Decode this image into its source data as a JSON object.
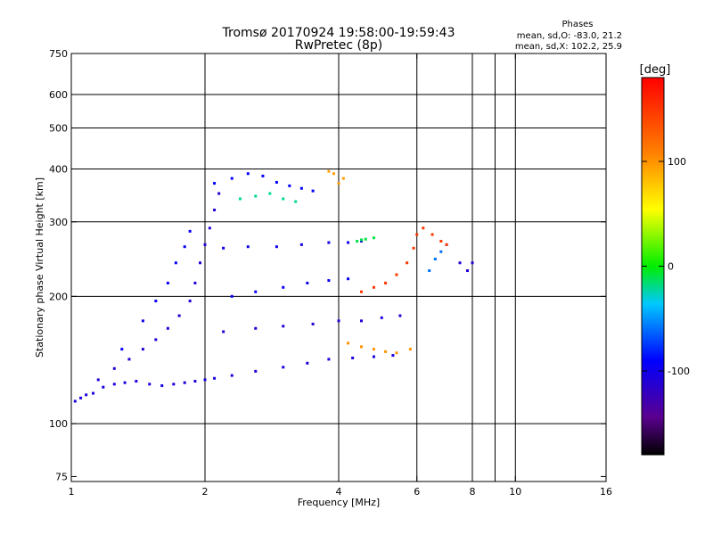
{
  "title": {
    "line1": "Tromsø 20170924 19:58:00-19:59:43",
    "line2": "RwPretec (8p)"
  },
  "phase_stats": {
    "heading": "Phases",
    "o_mode": "mean, sd,O: -83.0, 21.2",
    "x_mode": "mean, sd,X: 102.2, 25.9"
  },
  "colorbar": {
    "unit_label": "[deg]",
    "ticks": [
      "100",
      "0",
      "-100"
    ],
    "tick_values": [
      100,
      0,
      -100
    ],
    "range": [
      -180,
      180
    ],
    "colormap": "rainbow"
  },
  "chart_data": {
    "type": "scatter",
    "xlabel": "Frequency [MHz]",
    "ylabel": "Stationary phase Virtual Height [km]",
    "x_scale": "log",
    "y_scale": "log",
    "xlim": [
      1,
      16
    ],
    "ylim": [
      73,
      750
    ],
    "x_ticks": [
      {
        "value": 1,
        "label": "1"
      },
      {
        "value": 2,
        "label": "2"
      },
      {
        "value": 4,
        "label": "4"
      },
      {
        "value": 6,
        "label": "6"
      },
      {
        "value": 8,
        "label": "8"
      },
      {
        "value": 10,
        "label": "10"
      },
      {
        "value": 16,
        "label": "16"
      }
    ],
    "x_gridlines": [
      2,
      4,
      6,
      8,
      9,
      10
    ],
    "y_ticks": [
      {
        "value": 75,
        "label": "75"
      },
      {
        "value": 100,
        "label": "100"
      },
      {
        "value": 200,
        "label": "200"
      },
      {
        "value": 300,
        "label": "300"
      },
      {
        "value": 400,
        "label": "400"
      },
      {
        "value": 500,
        "label": "500"
      },
      {
        "value": 600,
        "label": "600"
      },
      {
        "value": 750,
        "label": "750"
      }
    ],
    "y_gridlines": [
      100,
      200,
      300,
      400,
      500,
      600
    ],
    "grid": true,
    "point_color_encodes": "phase [deg]",
    "series": [
      {
        "points": [
          [
            1.02,
            113
          ],
          [
            1.05,
            115
          ],
          [
            1.08,
            117
          ],
          [
            1.12,
            118
          ],
          [
            1.18,
            122
          ],
          [
            1.25,
            124
          ],
          [
            1.32,
            125
          ],
          [
            1.4,
            126
          ],
          [
            1.5,
            124
          ],
          [
            1.6,
            123
          ],
          [
            1.7,
            124
          ],
          [
            1.8,
            125
          ],
          [
            1.9,
            126
          ],
          [
            2.0,
            127
          ],
          [
            2.1,
            128
          ],
          [
            2.3,
            130
          ],
          [
            2.6,
            133
          ],
          [
            3.0,
            136
          ],
          [
            3.4,
            139
          ],
          [
            3.8,
            142
          ],
          [
            4.3,
            143
          ],
          [
            4.8,
            144
          ],
          [
            5.3,
            145
          ]
        ],
        "phase": -105
      },
      {
        "points": [
          [
            1.15,
            127
          ],
          [
            1.25,
            135
          ],
          [
            1.35,
            142
          ],
          [
            1.45,
            150
          ],
          [
            1.55,
            158
          ],
          [
            1.65,
            168
          ],
          [
            1.75,
            180
          ],
          [
            1.85,
            195
          ],
          [
            1.9,
            215
          ],
          [
            1.95,
            240
          ],
          [
            2.0,
            265
          ],
          [
            2.05,
            290
          ],
          [
            2.1,
            320
          ],
          [
            2.15,
            350
          ]
        ],
        "phase": -110
      },
      {
        "points": [
          [
            1.3,
            150
          ],
          [
            1.45,
            175
          ],
          [
            1.55,
            195
          ],
          [
            1.65,
            215
          ],
          [
            1.72,
            240
          ],
          [
            1.8,
            262
          ],
          [
            1.85,
            285
          ]
        ],
        "phase": -95
      },
      {
        "points": [
          [
            2.1,
            370
          ],
          [
            2.3,
            380
          ],
          [
            2.5,
            390
          ],
          [
            2.7,
            385
          ],
          [
            2.9,
            372
          ],
          [
            3.1,
            365
          ],
          [
            3.3,
            360
          ],
          [
            3.5,
            355
          ]
        ],
        "phase": -90
      },
      {
        "points": [
          [
            2.4,
            340
          ],
          [
            2.6,
            345
          ],
          [
            2.8,
            350
          ],
          [
            3.0,
            340
          ],
          [
            3.2,
            335
          ]
        ],
        "phase": -20
      },
      {
        "points": [
          [
            2.2,
            260
          ],
          [
            2.5,
            262
          ],
          [
            2.9,
            262
          ],
          [
            3.3,
            265
          ],
          [
            3.8,
            268
          ],
          [
            4.2,
            268
          ],
          [
            4.5,
            270
          ]
        ],
        "phase": -100
      },
      {
        "points": [
          [
            2.3,
            200
          ],
          [
            2.6,
            205
          ],
          [
            3.0,
            210
          ],
          [
            3.4,
            215
          ],
          [
            3.8,
            218
          ],
          [
            4.2,
            220
          ]
        ],
        "phase": -95
      },
      {
        "points": [
          [
            2.2,
            165
          ],
          [
            2.6,
            168
          ],
          [
            3.0,
            170
          ],
          [
            3.5,
            172
          ],
          [
            4.0,
            175
          ],
          [
            4.5,
            175
          ],
          [
            5.0,
            178
          ],
          [
            5.5,
            180
          ]
        ],
        "phase": -110
      },
      {
        "points": [
          [
            4.4,
            270
          ],
          [
            4.5,
            272
          ],
          [
            4.6,
            273
          ],
          [
            4.8,
            275
          ]
        ],
        "phase": -10
      },
      {
        "points": [
          [
            4.0,
            370
          ],
          [
            4.1,
            380
          ],
          [
            3.9,
            390
          ],
          [
            3.8,
            395
          ]
        ],
        "phase": 95
      },
      {
        "points": [
          [
            4.5,
            205
          ],
          [
            4.8,
            210
          ],
          [
            5.1,
            215
          ],
          [
            5.4,
            225
          ],
          [
            5.7,
            240
          ],
          [
            5.9,
            260
          ],
          [
            6.0,
            280
          ]
        ],
        "phase": 150
      },
      {
        "points": [
          [
            4.2,
            155
          ],
          [
            4.5,
            152
          ],
          [
            4.8,
            150
          ],
          [
            5.1,
            148
          ],
          [
            5.4,
            147
          ],
          [
            5.8,
            150
          ]
        ],
        "phase": 100
      },
      {
        "points": [
          [
            6.4,
            230
          ],
          [
            6.6,
            245
          ],
          [
            6.8,
            255
          ],
          [
            7.0,
            265
          ]
        ],
        "phase": -60
      },
      {
        "points": [
          [
            6.2,
            290
          ],
          [
            6.5,
            280
          ],
          [
            6.8,
            270
          ],
          [
            7.0,
            265
          ]
        ],
        "phase": 150
      },
      {
        "points": [
          [
            7.5,
            240
          ],
          [
            7.8,
            230
          ],
          [
            8.0,
            240
          ]
        ],
        "phase": -110
      }
    ]
  }
}
